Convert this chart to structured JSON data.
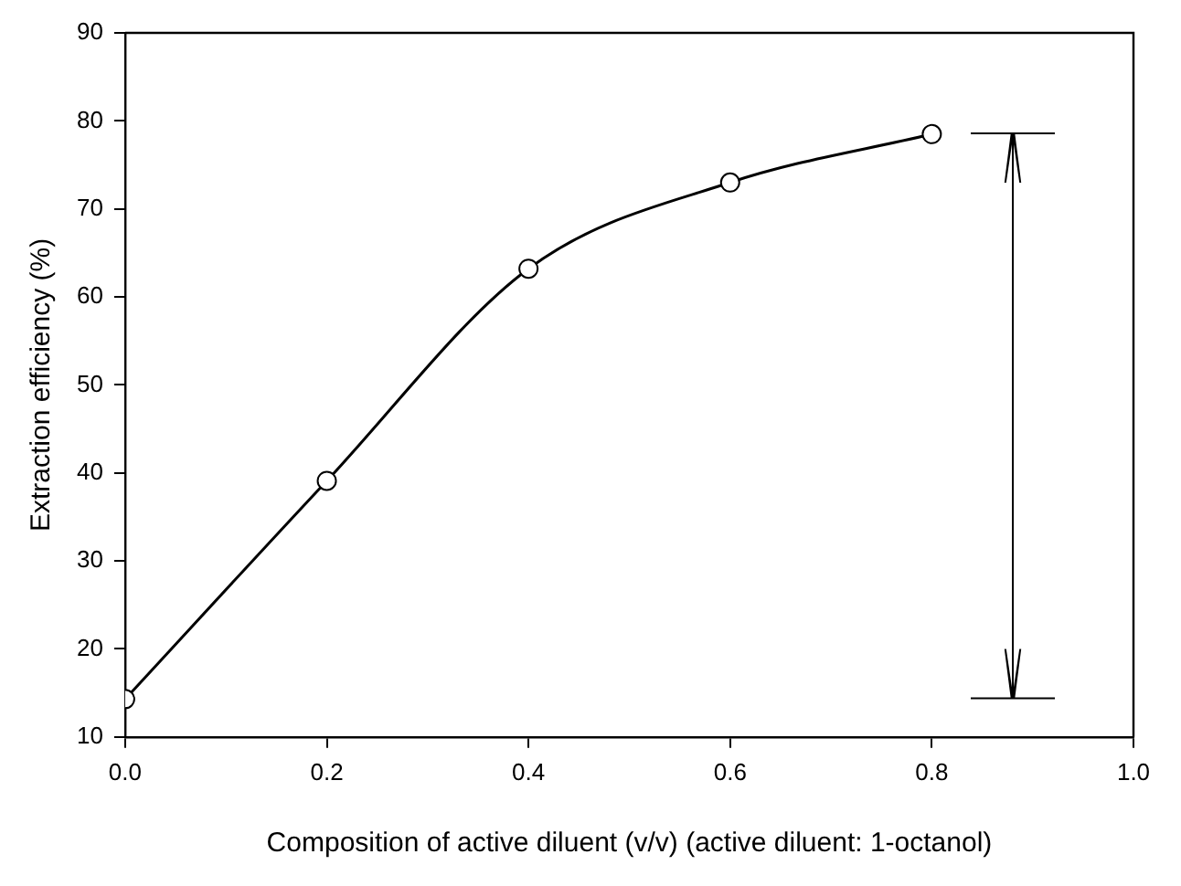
{
  "chart_data": {
    "type": "line",
    "xlabel": "Composition of active diluent (v/v) (active diluent: 1-octanol)",
    "ylabel": "Extraction efficiency (%)",
    "x": [
      0,
      0.2,
      0.4,
      0.6,
      0.8
    ],
    "series": [
      {
        "color": "#000000",
        "values": [
          14.3,
          39.1,
          63.2,
          73.0,
          78.5
        ]
      }
    ],
    "xlim": [
      0,
      1
    ],
    "xticks": [
      {
        "value": 0,
        "label": "0.0"
      },
      0.2,
      0.4,
      0.6,
      0.8,
      {
        "value": 1,
        "label": "1.0"
      }
    ],
    "ylim": [
      10,
      90
    ],
    "yticks": [
      10,
      20,
      30,
      40,
      50,
      60,
      70,
      80,
      90
    ],
    "marker": "circle",
    "line_style": "solid",
    "grid": false,
    "legend": false
  }
}
